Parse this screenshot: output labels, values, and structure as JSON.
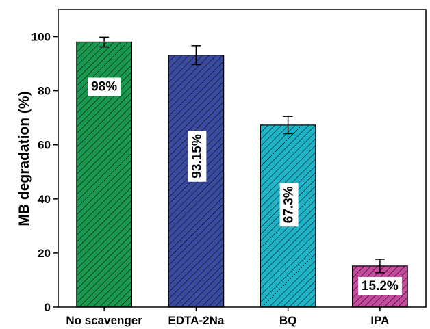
{
  "chart_data": {
    "type": "bar",
    "categories": [
      "No scavenger",
      "EDTA-2Na",
      "BQ",
      "IPA"
    ],
    "values": [
      98,
      93.15,
      67.3,
      15.2
    ],
    "errors": [
      1.8,
      3.5,
      3.2,
      2.5
    ],
    "data_labels": [
      "98%",
      "93.15%",
      "67.3%",
      "15.2%"
    ],
    "data_label_orientation": [
      "horizontal",
      "vertical",
      "vertical",
      "horizontal"
    ],
    "colors": [
      "#1a9850",
      "#3a4a9f",
      "#1fb3c8",
      "#c64a9e"
    ],
    "hatch": "diagonal",
    "xlabel": "",
    "ylabel": "MB degradation (%)",
    "ylim": [
      0,
      110
    ],
    "yticks": [
      0,
      20,
      40,
      60,
      80,
      100
    ],
    "grid": false,
    "legend": "none"
  }
}
